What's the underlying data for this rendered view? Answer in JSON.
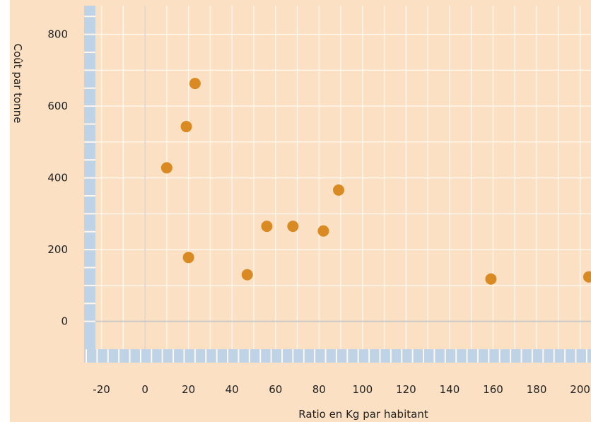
{
  "chart_data": {
    "type": "scatter",
    "xlabel": "Ratio en Kg par habitant",
    "ylabel": "Coût par tonne",
    "xlim": [
      -27,
      205
    ],
    "ylim": [
      -115,
      880
    ],
    "xticks": [
      -20,
      0,
      20,
      40,
      60,
      80,
      100,
      120,
      140,
      160,
      180,
      200
    ],
    "yticks": [
      0,
      200,
      400,
      600,
      800
    ],
    "grid": true,
    "points": [
      {
        "x": 10,
        "y": 428
      },
      {
        "x": 19,
        "y": 543
      },
      {
        "x": 20,
        "y": 178
      },
      {
        "x": 23,
        "y": 663
      },
      {
        "x": 47,
        "y": 130
      },
      {
        "x": 56,
        "y": 265
      },
      {
        "x": 68,
        "y": 265
      },
      {
        "x": 82,
        "y": 252
      },
      {
        "x": 89,
        "y": 366
      },
      {
        "x": 159,
        "y": 118
      },
      {
        "x": 204,
        "y": 124
      }
    ],
    "colors": {
      "background": "#fbe0c3",
      "marker": "#d98a22",
      "axis_band": "#bfd3e6",
      "zero_line": "#c9c9c9",
      "grid": "#fff6ec"
    }
  }
}
